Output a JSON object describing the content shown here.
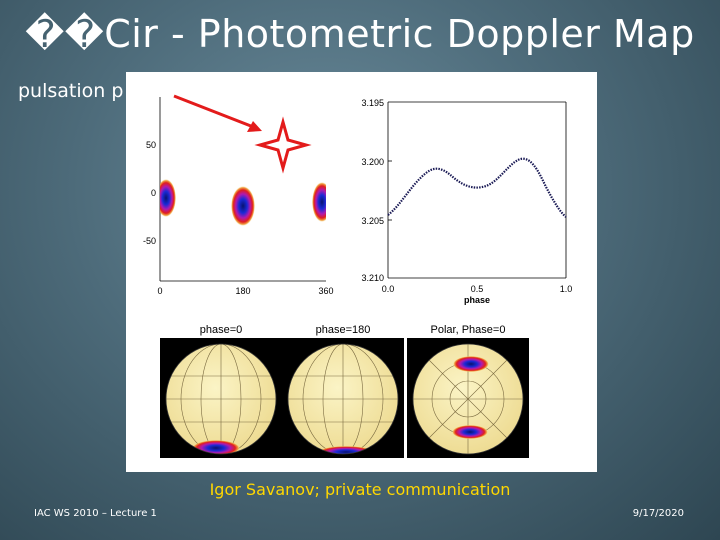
{
  "slide": {
    "title": "��Cir - Photometric Doppler Map",
    "subtitle": "pulsation p",
    "credit": "Igor Savanov; private communication",
    "footer_left": "IAC WS 2010 – Lecture 1",
    "footer_right": "9/17/2020"
  },
  "map_panel": {
    "y_ticks": [
      "50",
      "0",
      "-50"
    ],
    "x_ticks": [
      "0",
      "180",
      "360"
    ]
  },
  "light_curve": {
    "y_ticks": [
      "3.195",
      "3.200",
      "3.205",
      "3.210"
    ],
    "x_ticks": [
      "0.0",
      "0.5",
      "1.0"
    ],
    "xlabel": "phase"
  },
  "globes": {
    "labels": [
      "phase=0",
      "phase=180",
      "Polar, Phase=0"
    ]
  },
  "colors": {
    "arrow": "#e31b1b",
    "spot_core": "#0b1a8c",
    "spot_edge": "#d81b1b",
    "globe_fill": "#f6ecb0",
    "credit": "#ffd700"
  }
}
